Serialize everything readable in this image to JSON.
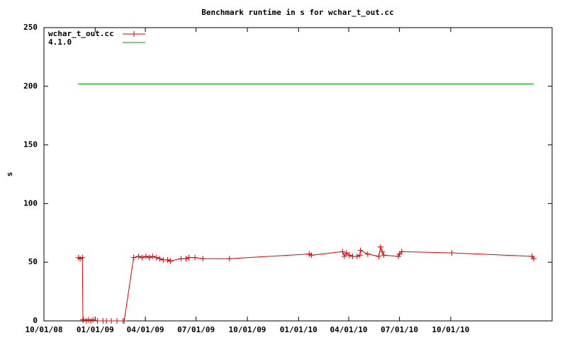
{
  "chart_data": {
    "type": "line",
    "title": "Benchmark runtime in s for wchar_t_out.cc",
    "y_label": "s",
    "xlim": [
      "2008-10-01",
      "2011-04-01"
    ],
    "xticks": [
      {
        "value": "2008-10-01",
        "label": "10/01/08"
      },
      {
        "value": "2009-01-01",
        "label": "01/01/09"
      },
      {
        "value": "2009-04-01",
        "label": "04/01/09"
      },
      {
        "value": "2009-07-01",
        "label": "07/01/09"
      },
      {
        "value": "2009-10-01",
        "label": "10/01/09"
      },
      {
        "value": "2010-01-01",
        "label": "01/01/10"
      },
      {
        "value": "2010-04-01",
        "label": "04/01/10"
      },
      {
        "value": "2010-07-01",
        "label": "07/01/10"
      },
      {
        "value": "2010-10-01",
        "label": "10/01/10"
      }
    ],
    "ylim": [
      0,
      250
    ],
    "yticks": [
      0,
      50,
      100,
      150,
      200,
      250
    ],
    "legend": "top-left",
    "series": [
      {
        "name": "wchar_t_out.cc",
        "color": "#e00000",
        "marker": "+",
        "x": [
          "2008-12-02",
          "2008-12-05",
          "2008-12-09",
          "2008-12-10",
          "2008-12-11",
          "2008-12-16",
          "2008-12-20",
          "2008-12-24",
          "2008-12-28",
          "2009-01-05",
          "2009-01-15",
          "2009-01-21",
          "2009-01-30",
          "2009-02-09",
          "2009-02-20",
          "2009-02-22",
          "2009-03-11",
          "2009-03-20",
          "2009-03-26",
          "2009-04-02",
          "2009-04-08",
          "2009-04-14",
          "2009-04-21",
          "2009-04-27",
          "2009-05-03",
          "2009-05-11",
          "2009-05-16",
          "2009-06-04",
          "2009-06-13",
          "2009-06-18",
          "2009-06-29",
          "2009-07-13",
          "2009-08-30",
          "2010-01-20",
          "2010-01-24",
          "2010-03-21",
          "2010-03-24",
          "2010-03-28",
          "2010-04-02",
          "2010-04-08",
          "2010-04-16",
          "2010-04-21",
          "2010-04-22",
          "2010-05-05",
          "2010-05-25",
          "2010-05-28",
          "2010-05-31",
          "2010-06-03",
          "2010-06-29",
          "2010-07-01",
          "2010-07-05",
          "2010-10-03",
          "2011-02-24",
          "2011-02-27"
        ],
        "values": [
          54,
          53,
          54,
          1,
          1,
          0,
          1,
          0,
          1,
          0,
          0,
          0,
          0,
          0,
          0,
          0,
          54,
          55,
          54,
          55,
          54,
          55,
          54,
          53,
          52,
          52,
          51,
          53,
          53,
          54,
          54,
          53,
          53,
          57,
          56,
          59,
          55,
          58,
          56,
          55,
          55,
          56,
          60,
          57,
          55,
          63,
          59,
          56,
          55,
          57,
          59,
          58,
          55,
          53
        ]
      },
      {
        "name": "4.1.0",
        "color": "#00a000",
        "marker": null,
        "x": [
          "2008-12-01",
          "2011-02-27"
        ],
        "values": [
          202,
          202
        ]
      }
    ]
  }
}
